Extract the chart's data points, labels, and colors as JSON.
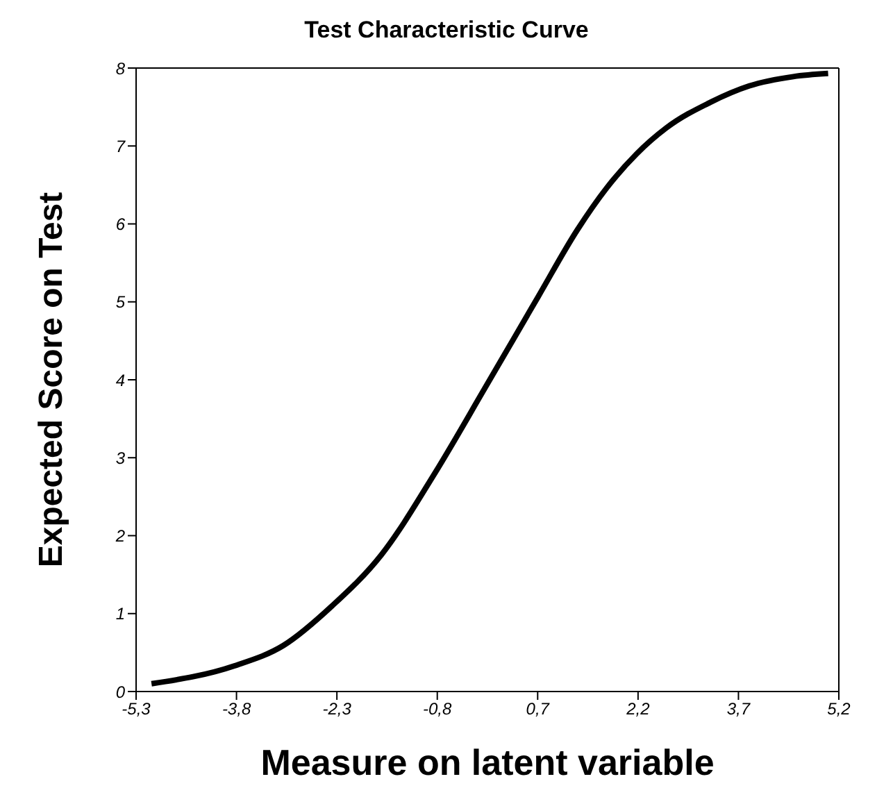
{
  "chart_data": {
    "type": "line",
    "title": "Test Characteristic Curve",
    "xlabel": "Measure on latent variable",
    "ylabel": "Expected Score on Test",
    "x": [
      -5.07,
      -3.83,
      -3.1,
      -2.37,
      -1.63,
      -0.83,
      -0.09,
      0.71,
      1.29,
      1.73,
      2.18,
      2.62,
      3.28,
      3.86,
      4.52,
      5.04
    ],
    "series": [
      {
        "color": "#000000",
        "values": [
          0.1,
          0.33,
          0.59,
          1.1,
          1.76,
          2.81,
          3.89,
          5.07,
          5.92,
          6.46,
          6.9,
          7.23,
          7.56,
          7.77,
          7.89,
          7.93
        ]
      }
    ],
    "xlim": [
      -5.3,
      5.2
    ],
    "xticks": [
      {
        "value": -5.3,
        "label": "-5,3"
      },
      {
        "value": -3.8,
        "label": "-3,8"
      },
      {
        "value": -2.3,
        "label": "-2,3"
      },
      {
        "value": -0.8,
        "label": "-0,8"
      },
      {
        "value": 0.7,
        "label": "0,7"
      },
      {
        "value": 2.2,
        "label": "2,2"
      },
      {
        "value": 3.7,
        "label": "3,7"
      },
      {
        "value": 5.2,
        "label": "5,2"
      }
    ],
    "ylim": [
      0,
      8
    ],
    "yticks": [
      0,
      1,
      2,
      3,
      4,
      5,
      6,
      7,
      8
    ],
    "grid": false,
    "marker": "none",
    "line_style": "solid"
  }
}
